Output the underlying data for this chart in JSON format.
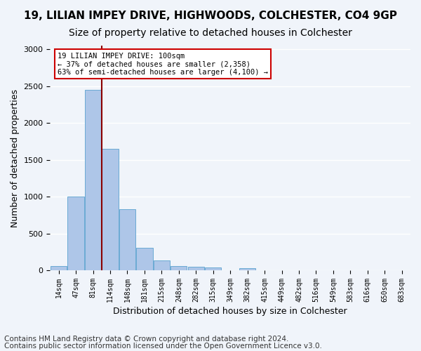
{
  "title1": "19, LILIAN IMPEY DRIVE, HIGHWOODS, COLCHESTER, CO4 9GP",
  "title2": "Size of property relative to detached houses in Colchester",
  "xlabel": "Distribution of detached houses by size in Colchester",
  "ylabel": "Number of detached properties",
  "footer1": "Contains HM Land Registry data © Crown copyright and database right 2024.",
  "footer2": "Contains public sector information licensed under the Open Government Licence v3.0.",
  "annotation_line1": "19 LILIAN IMPEY DRIVE: 100sqm",
  "annotation_line2": "← 37% of detached houses are smaller (2,358)",
  "annotation_line3": "63% of semi-detached houses are larger (4,100) →",
  "bar_values": [
    60,
    1000,
    2450,
    1650,
    830,
    310,
    130,
    55,
    45,
    40,
    0,
    30,
    0,
    0,
    0,
    0,
    0,
    0,
    0,
    0
  ],
  "bin_labels": [
    "14sqm",
    "47sqm",
    "81sqm",
    "114sqm",
    "148sqm",
    "181sqm",
    "215sqm",
    "248sqm",
    "282sqm",
    "315sqm",
    "349sqm",
    "382sqm",
    "415sqm",
    "449sqm",
    "482sqm",
    "516sqm",
    "549sqm",
    "583sqm",
    "616sqm",
    "650sqm"
  ],
  "bar_color": "#aec6e8",
  "bar_edge_color": "#6aaad4",
  "vline_color": "#8b0000",
  "annotation_box_color": "#ffffff",
  "annotation_box_edgecolor": "#cc0000",
  "ylim": [
    0,
    3050
  ],
  "yticks": [
    0,
    500,
    1000,
    1500,
    2000,
    2500,
    3000
  ],
  "background_color": "#f0f4fa",
  "grid_color": "#ffffff",
  "title1_fontsize": 11,
  "title2_fontsize": 10,
  "xlabel_fontsize": 9,
  "ylabel_fontsize": 9,
  "footer_fontsize": 7.5,
  "extra_xtick_label": "683sqm"
}
